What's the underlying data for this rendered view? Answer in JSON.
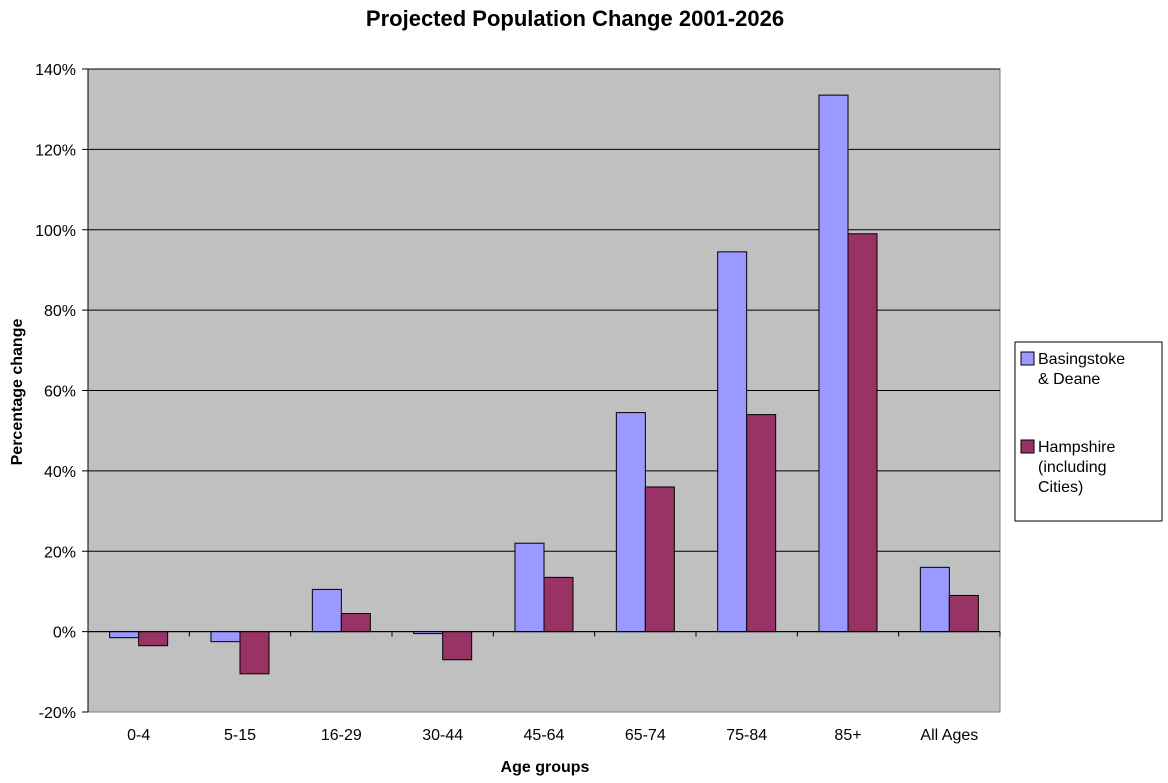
{
  "chart_data": {
    "type": "bar",
    "title": "Projected Population Change 2001-2026",
    "xlabel": "Age groups",
    "ylabel": "Percentage change",
    "categories": [
      "0-4",
      "5-15",
      "16-29",
      "30-44",
      "45-64",
      "65-74",
      "75-84",
      "85+",
      "All Ages"
    ],
    "series": [
      {
        "name": "Basingstoke & Deane",
        "legend_lines": [
          "Basingstoke",
          "& Deane"
        ],
        "color": "#9999ff",
        "values": [
          -1.5,
          -2.5,
          10.5,
          -0.5,
          22,
          54.5,
          94.5,
          133.5,
          16
        ]
      },
      {
        "name": "Hampshire (including Cities)",
        "legend_lines": [
          "Hampshire",
          "(including",
          "Cities)"
        ],
        "color": "#993366",
        "values": [
          -3.5,
          -10.5,
          4.5,
          -7,
          13.5,
          36,
          54,
          99,
          9
        ]
      }
    ],
    "ylim": [
      -20,
      140
    ],
    "yticks": [
      -20,
      0,
      20,
      40,
      60,
      80,
      100,
      120,
      140
    ],
    "ytick_labels": [
      "-20%",
      "0%",
      "20%",
      "40%",
      "60%",
      "80%",
      "100%",
      "120%",
      "140%"
    ],
    "plot_background": "#c0c0c0",
    "grid": true,
    "legend": "right"
  }
}
